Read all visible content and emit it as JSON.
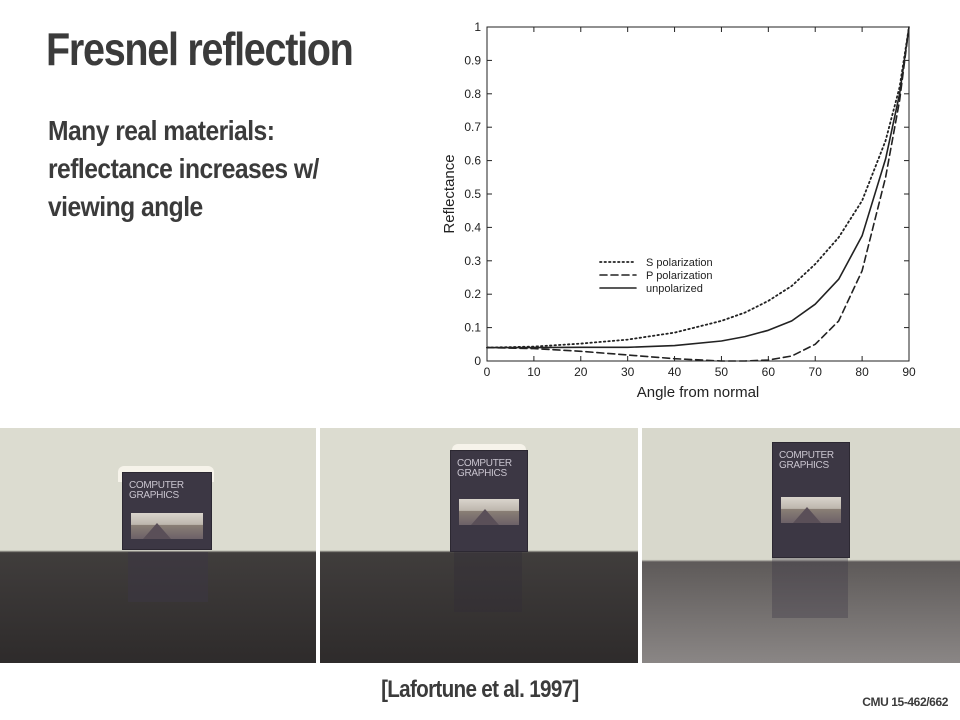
{
  "slide": {
    "title": "Fresnel reflection",
    "bullet_lines": [
      "Many real materials:",
      "reflectance increases w/",
      "viewing angle"
    ],
    "citation": "[Lafortune et al. 1997]",
    "course": "CMU 15-462/662"
  },
  "photos": [
    {
      "book_text": [
        "COMPUTER",
        "GRAPHICS"
      ]
    },
    {
      "book_text": [
        "COMPUTER",
        "GRAPHICS"
      ]
    },
    {
      "book_text": [
        "COMPUTER",
        "GRAPHICS"
      ]
    }
  ],
  "chart_data": {
    "type": "line",
    "title": "",
    "xlabel": "Angle from normal",
    "ylabel": "Reflectance",
    "xlim": [
      0,
      90
    ],
    "ylim": [
      0,
      1
    ],
    "xticks": [
      0,
      10,
      20,
      30,
      40,
      50,
      60,
      70,
      80,
      90
    ],
    "yticks": [
      0,
      0.1,
      0.2,
      0.3,
      0.4,
      0.5,
      0.6,
      0.7,
      0.8,
      0.9,
      1
    ],
    "grid": false,
    "legend_position": "center-right",
    "x": [
      0,
      10,
      20,
      30,
      40,
      50,
      55,
      60,
      65,
      70,
      75,
      80,
      85,
      88,
      90
    ],
    "series": [
      {
        "name": "S polarization",
        "style": "dotted",
        "values": [
          0.04,
          0.043,
          0.052,
          0.064,
          0.085,
          0.12,
          0.145,
          0.18,
          0.225,
          0.29,
          0.37,
          0.48,
          0.66,
          0.82,
          1.0
        ]
      },
      {
        "name": "P polarization",
        "style": "dashed",
        "values": [
          0.04,
          0.037,
          0.029,
          0.018,
          0.007,
          0.0,
          0.0,
          0.003,
          0.015,
          0.05,
          0.12,
          0.27,
          0.55,
          0.78,
          1.0
        ]
      },
      {
        "name": "unpolarized",
        "style": "solid",
        "values": [
          0.04,
          0.04,
          0.041,
          0.041,
          0.046,
          0.06,
          0.073,
          0.092,
          0.12,
          0.17,
          0.245,
          0.375,
          0.605,
          0.8,
          1.0
        ]
      }
    ]
  }
}
